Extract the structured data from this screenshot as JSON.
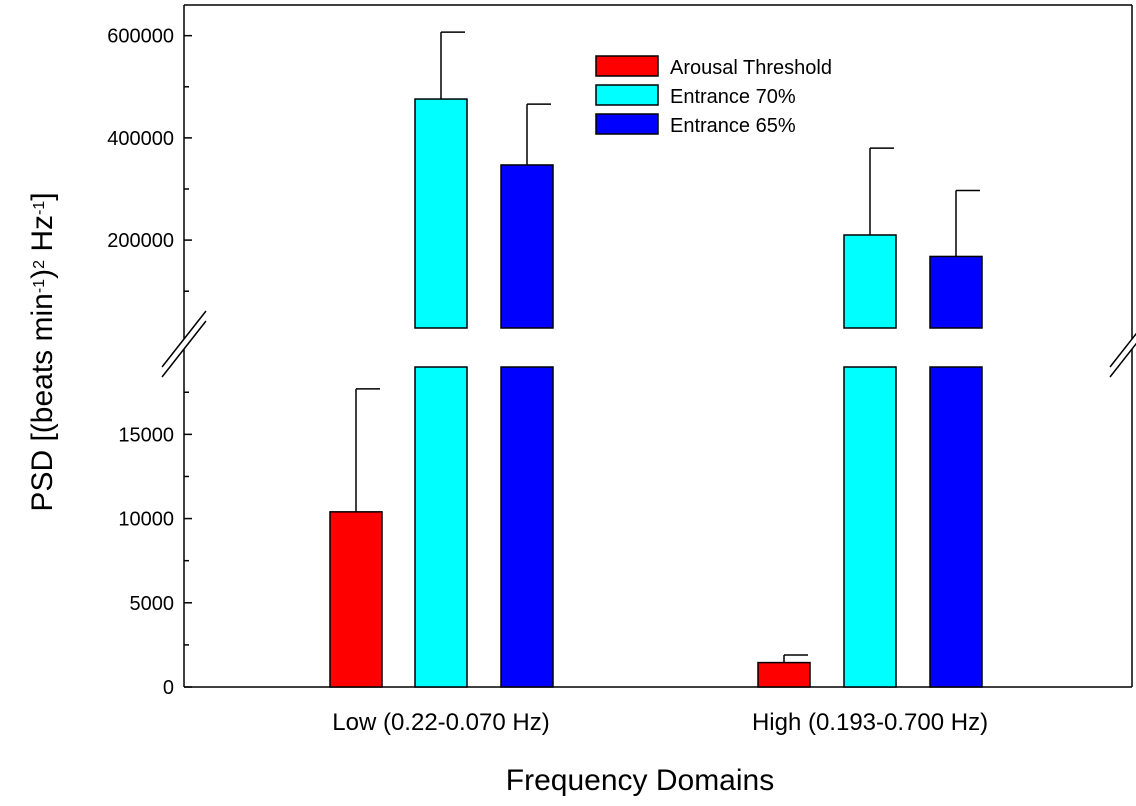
{
  "chart_data": {
    "type": "bar",
    "broken_axis": true,
    "xlabel": "Frequency Domains",
    "ylabel": "PSD [(beats min",
    "ylabel_sup1": "-1",
    "ylabel_mid": ")",
    "ylabel_sup2": "2",
    "ylabel_hz": " Hz",
    "ylabel_sup3": "-1",
    "ylabel_end": "]",
    "categories": [
      "Low (0.22-0.070 Hz)",
      "High (0.193-0.700 Hz)"
    ],
    "series": [
      {
        "name": "Arousal Threshold",
        "color": "#ff0000",
        "values": [
          10400,
          1450
        ],
        "errors": [
          7300,
          450
        ]
      },
      {
        "name": "Entrance 70%",
        "color": "#00ffff",
        "values": [
          476000,
          210000
        ],
        "errors": [
          131000,
          170000
        ]
      },
      {
        "name": "Entrance 65%",
        "color": "#0000ff",
        "values": [
          347000,
          168000
        ],
        "errors": [
          119000,
          129000
        ]
      }
    ],
    "lower_axis": {
      "ylim": [
        0,
        19000
      ],
      "ticks": [
        0,
        5000,
        10000,
        15000
      ],
      "tick_labels": [
        "0",
        "5000",
        "10000",
        "15000"
      ]
    },
    "upper_axis": {
      "ylim": [
        28000,
        660000
      ],
      "ticks": [
        200000,
        400000,
        600000
      ],
      "tick_labels": [
        "200000",
        "400000",
        "600000"
      ]
    },
    "legend_position": "top-right",
    "grid": false
  }
}
